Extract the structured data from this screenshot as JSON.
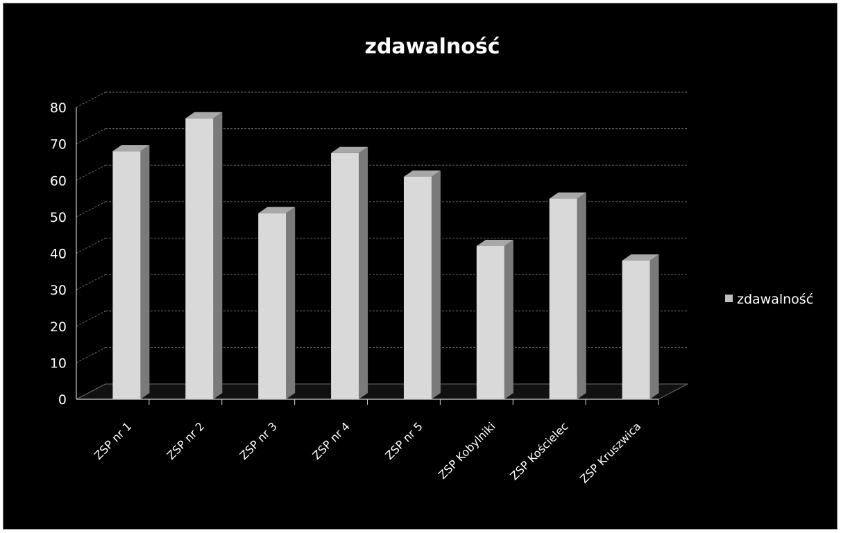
{
  "chart_data": {
    "type": "bar",
    "title": "zdawalność",
    "categories": [
      "ZSP nr 1",
      "ZSP nr 2",
      "ZSP nr 3",
      "ZSP nr 4",
      "ZSP nr 5",
      "ZSP Kobylniki",
      "ZSP Kościelec",
      "ZSP Kruszwica"
    ],
    "series": [
      {
        "name": "zdawalność",
        "values": [
          68,
          77,
          51,
          67.5,
          61,
          42,
          55,
          38
        ]
      }
    ],
    "ylim": [
      0,
      80
    ],
    "yticks": [
      "0",
      "10",
      "20",
      "30",
      "40",
      "50",
      "60",
      "70",
      "80"
    ],
    "grid": true,
    "legend_position": "right",
    "colors": {
      "background": "#000000",
      "bar": "#d9d9d9",
      "text": "#ffffff",
      "grid": "#6a6a6a"
    }
  }
}
